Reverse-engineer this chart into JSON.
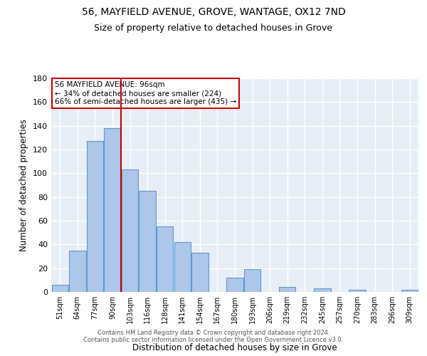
{
  "title1": "56, MAYFIELD AVENUE, GROVE, WANTAGE, OX12 7ND",
  "title2": "Size of property relative to detached houses in Grove",
  "xlabel": "Distribution of detached houses by size in Grove",
  "ylabel": "Number of detached properties",
  "annotation_line1": "56 MAYFIELD AVENUE: 96sqm",
  "annotation_line2": "← 34% of detached houses are smaller (224)",
  "annotation_line3": "66% of semi-detached houses are larger (435) →",
  "bin_labels": [
    "51sqm",
    "64sqm",
    "77sqm",
    "90sqm",
    "103sqm",
    "116sqm",
    "128sqm",
    "141sqm",
    "154sqm",
    "167sqm",
    "180sqm",
    "193sqm",
    "206sqm",
    "219sqm",
    "232sqm",
    "245sqm",
    "257sqm",
    "270sqm",
    "283sqm",
    "296sqm",
    "309sqm"
  ],
  "bar_values": [
    6,
    35,
    127,
    138,
    103,
    85,
    55,
    42,
    33,
    0,
    12,
    19,
    0,
    4,
    0,
    3,
    0,
    2,
    0,
    0,
    2
  ],
  "bar_color": "#aec6e8",
  "bar_edge_color": "#5b9bd5",
  "vline_color": "#cc0000",
  "vline_x": 3.5,
  "background_color": "#e8eef5",
  "grid_color": "#ffffff",
  "ylim": [
    0,
    180
  ],
  "yticks": [
    0,
    20,
    40,
    60,
    80,
    100,
    120,
    140,
    160,
    180
  ],
  "footer1": "Contains HM Land Registry data © Crown copyright and database right 2024.",
  "footer2": "Contains public sector information licensed under the Open Government Licence v3.0."
}
